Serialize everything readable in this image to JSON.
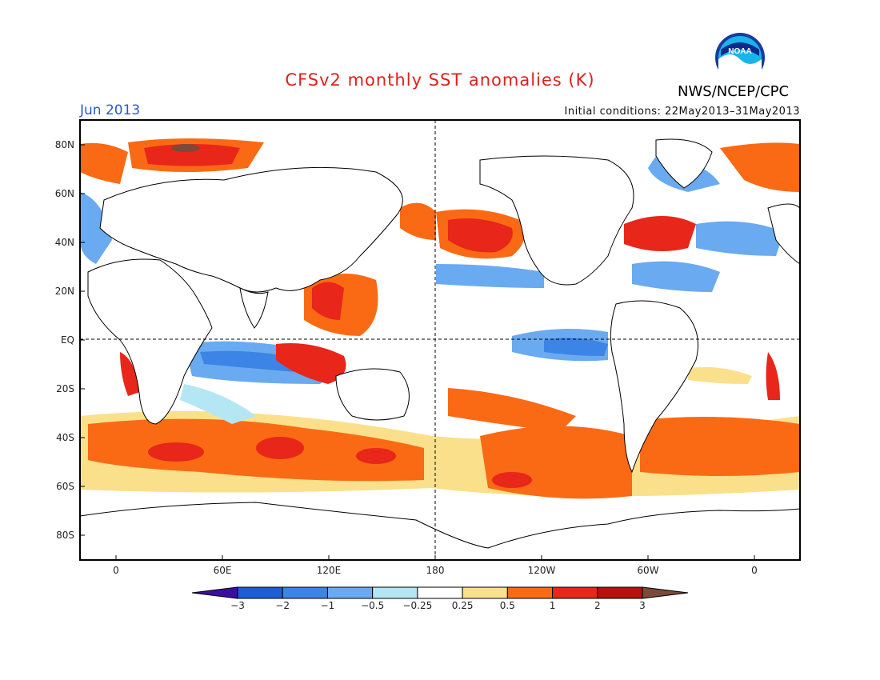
{
  "title": "CFSv2 monthly SST anomalies (K)",
  "month_label": "Jun 2013",
  "initial_conditions": "Initial conditions: 22May2013–31May2013",
  "agency": "NWS/NCEP/CPC",
  "logo": {
    "text": "NOAA",
    "icon": "noaa-logo"
  },
  "map": {
    "lat_ticks": [
      "80N",
      "60N",
      "40N",
      "20N",
      "EQ",
      "20S",
      "40S",
      "60S",
      "80S"
    ],
    "lon_ticks": [
      "0",
      "60E",
      "120E",
      "180",
      "120W",
      "60W",
      "0"
    ],
    "reference_lines": [
      "EQ",
      "180"
    ]
  },
  "colorbar": {
    "labels": [
      "−3",
      "−2",
      "−1",
      "−0.5",
      "−0.25",
      "0.25",
      "0.5",
      "1",
      "2",
      "3"
    ],
    "colors": [
      "#3a0fa0",
      "#1c5fd2",
      "#3c84e6",
      "#6aaaf0",
      "#b4e6f4",
      "#ffffff",
      "#fbe08c",
      "#fa6a14",
      "#e8261a",
      "#b80f0f",
      "#7a4a3a"
    ]
  }
}
